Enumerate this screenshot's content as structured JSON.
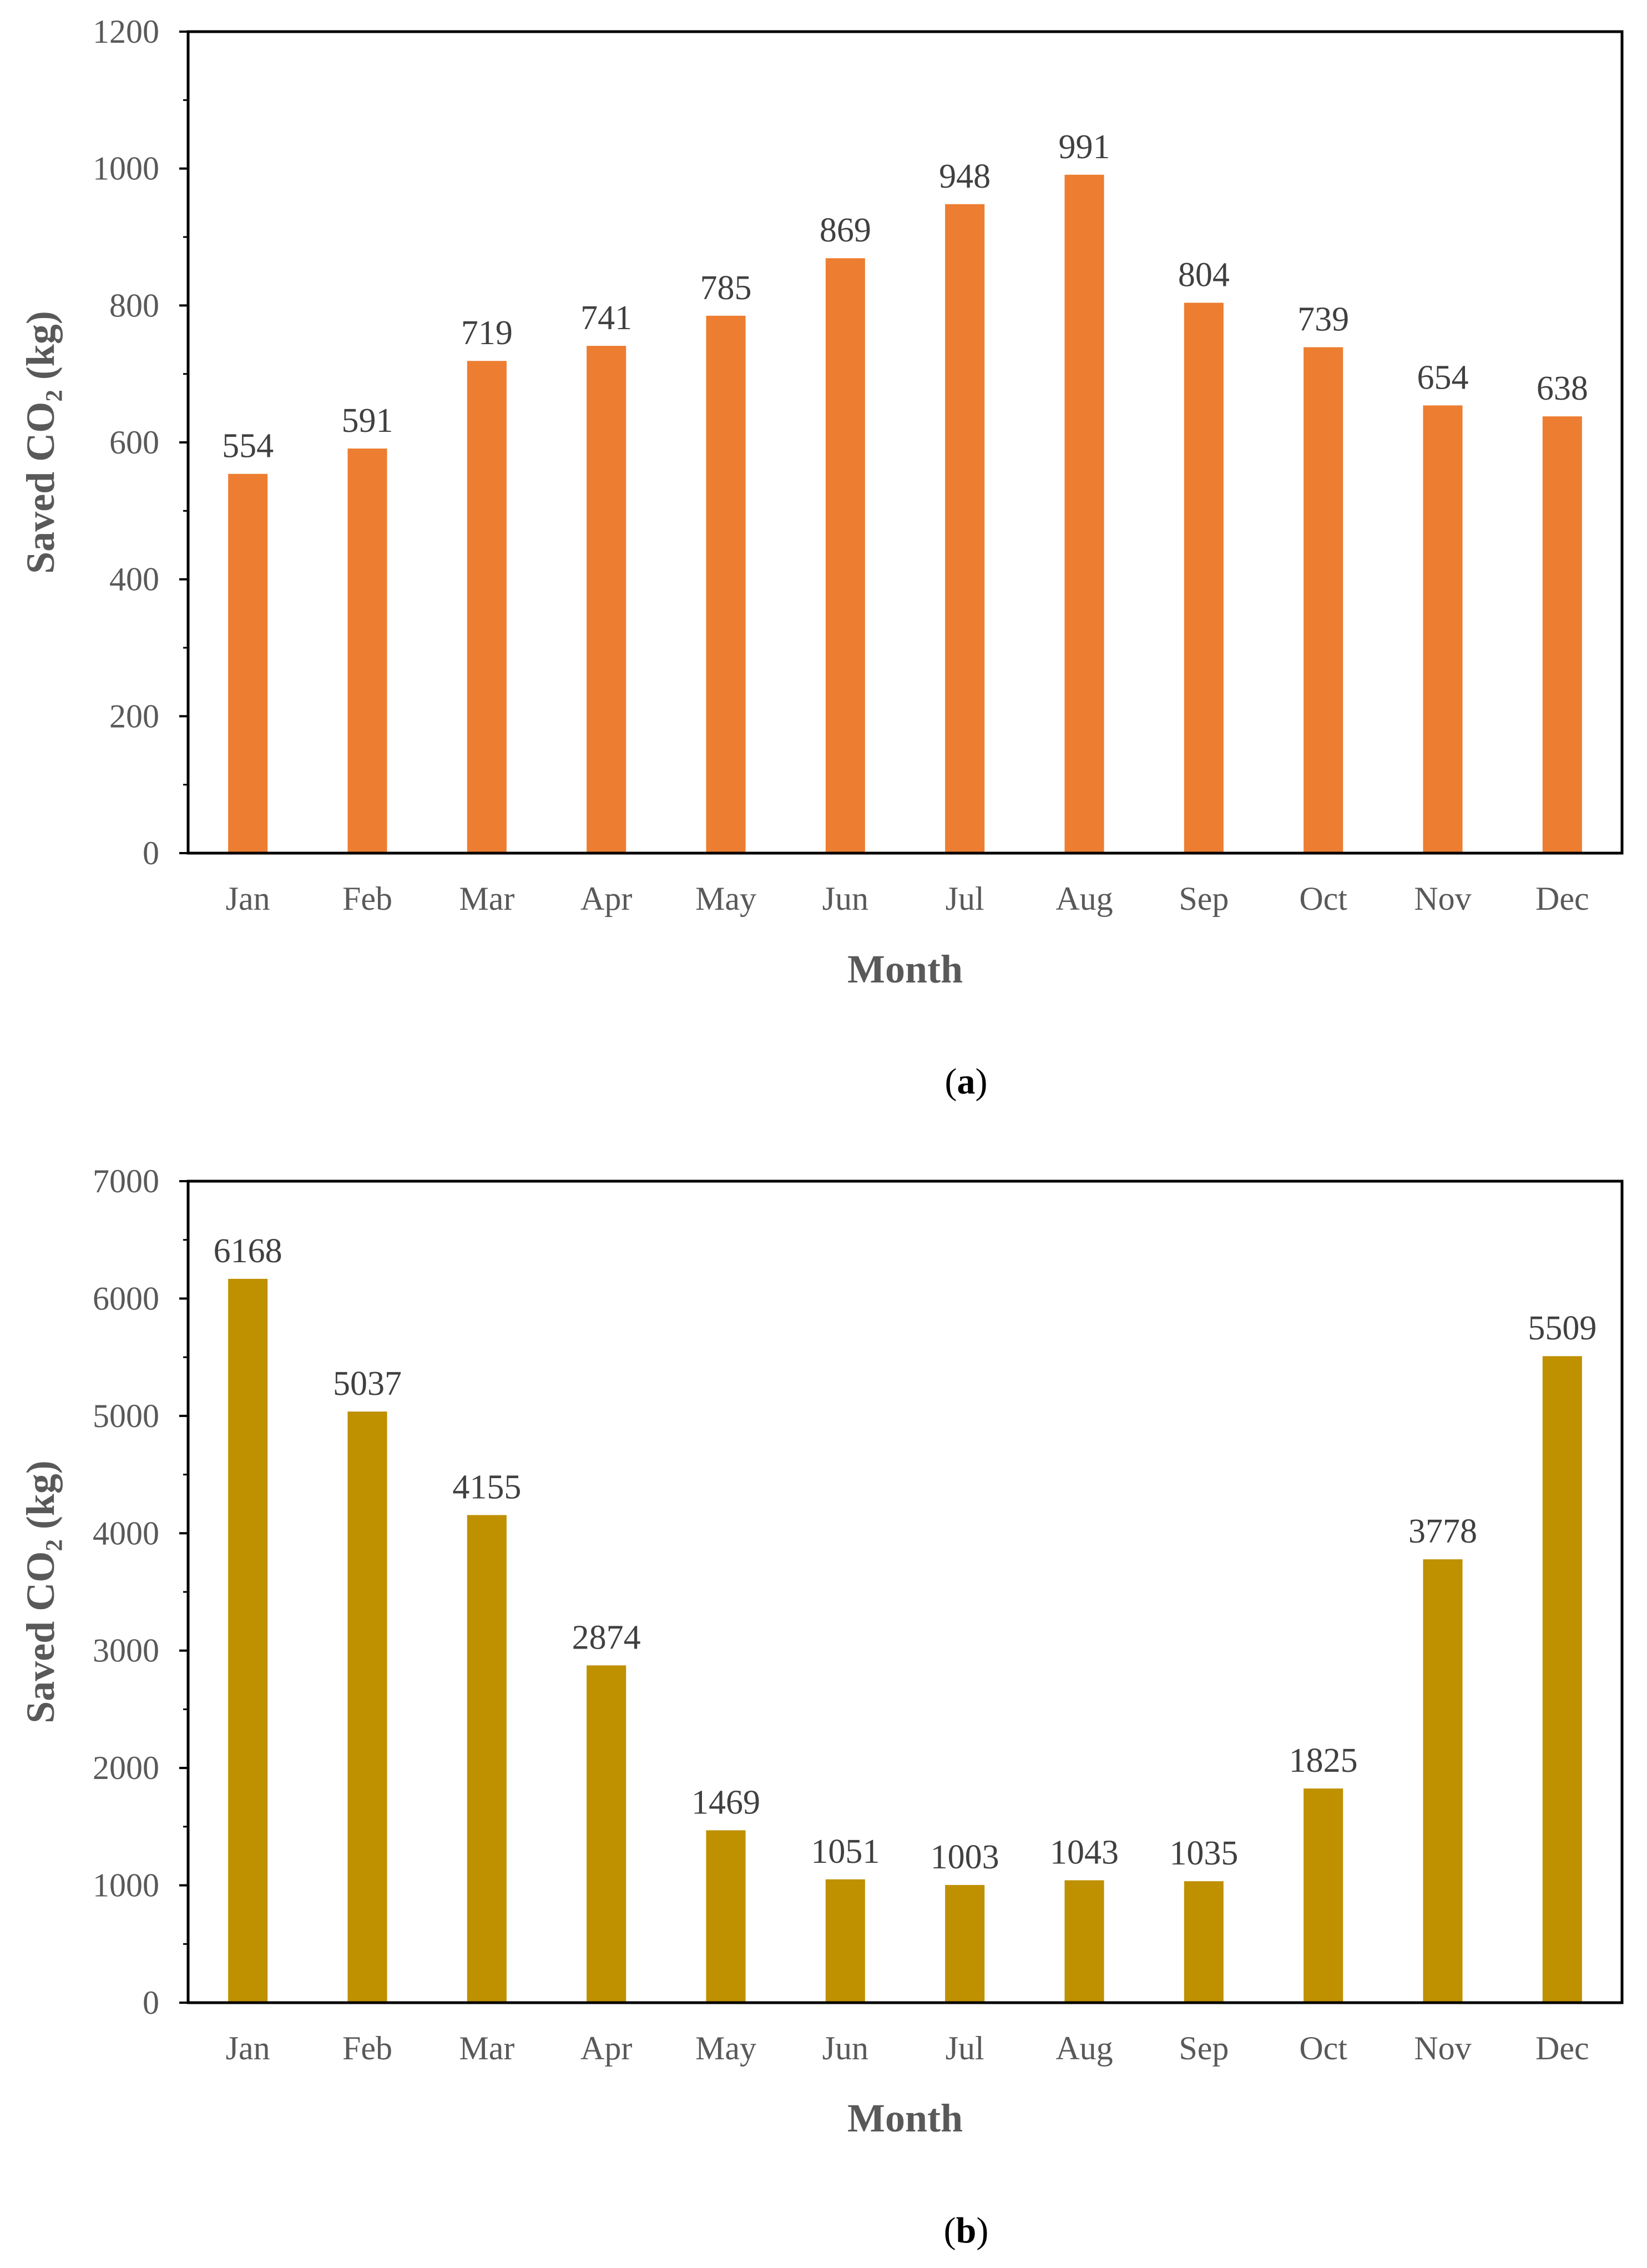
{
  "chart_data": [
    {
      "id": "a",
      "type": "bar",
      "caption_letter": "a",
      "categories": [
        "Jan",
        "Feb",
        "Mar",
        "Apr",
        "May",
        "Jun",
        "Jul",
        "Aug",
        "Sep",
        "Oct",
        "Nov",
        "Dec"
      ],
      "values": [
        554,
        591,
        719,
        741,
        785,
        869,
        948,
        991,
        804,
        739,
        654,
        638
      ],
      "xlabel": "Month",
      "ylabel": "Saved CO₂ (kg)",
      "ylim": [
        0,
        1200
      ],
      "yticks": [
        0,
        200,
        400,
        600,
        800,
        1000,
        1200
      ],
      "color": "#ED7D31",
      "grid": false,
      "legend": "none"
    },
    {
      "id": "b",
      "type": "bar",
      "caption_letter": "b",
      "categories": [
        "Jan",
        "Feb",
        "Mar",
        "Apr",
        "May",
        "Jun",
        "Jul",
        "Aug",
        "Sep",
        "Oct",
        "Nov",
        "Dec"
      ],
      "values": [
        6168,
        5037,
        4155,
        2874,
        1469,
        1051,
        1003,
        1043,
        1035,
        1825,
        3778,
        5509
      ],
      "xlabel": "Month",
      "ylabel": "Saved CO₂ (kg)",
      "ylim": [
        0,
        7000
      ],
      "yticks": [
        0,
        1000,
        2000,
        3000,
        4000,
        5000,
        6000,
        7000
      ],
      "color": "#BF9000",
      "grid": false,
      "legend": "none"
    }
  ]
}
